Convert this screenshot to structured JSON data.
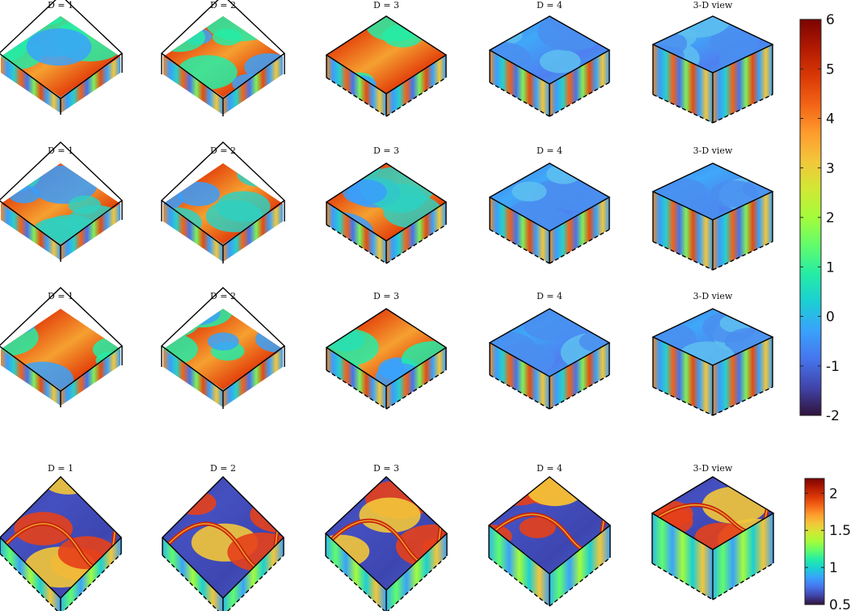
{
  "chart_data": {
    "type": "heatmap",
    "rows": [
      {
        "panels": [
          "D = 1",
          "D = 2",
          "D = 3",
          "D = 4",
          "3-D view"
        ]
      },
      {
        "panels": [
          "D = 1",
          "D = 2",
          "D = 3",
          "D = 4",
          "3-D view"
        ]
      },
      {
        "panels": [
          "D = 1",
          "D = 2",
          "D = 3",
          "D = 4",
          "3-D view"
        ]
      },
      {
        "panels": [
          "D = 1",
          "D = 2",
          "D = 3",
          "D = 4",
          "3-D view"
        ]
      }
    ],
    "colorbars": [
      {
        "ticks": [
          "6",
          "5",
          "4",
          "3",
          "2",
          "1",
          "0",
          "-1",
          "-2"
        ],
        "range": [
          -2,
          6
        ],
        "applies_to_rows": [
          0,
          1,
          2
        ]
      },
      {
        "ticks": [
          "2",
          "1.5",
          "1",
          "0.5"
        ],
        "range": [
          0.5,
          2.2
        ],
        "applies_to_rows": [
          3
        ]
      }
    ],
    "colormap": "turbo",
    "colormap_stops": [
      "#30123b",
      "#4145ab",
      "#4675ed",
      "#39a2fc",
      "#1bcfd4",
      "#24eca6",
      "#61fc6c",
      "#a4fc3b",
      "#d1e834",
      "#f3c63a",
      "#fe9b2d",
      "#f36315",
      "#d93806",
      "#b11901",
      "#7a0403"
    ]
  }
}
